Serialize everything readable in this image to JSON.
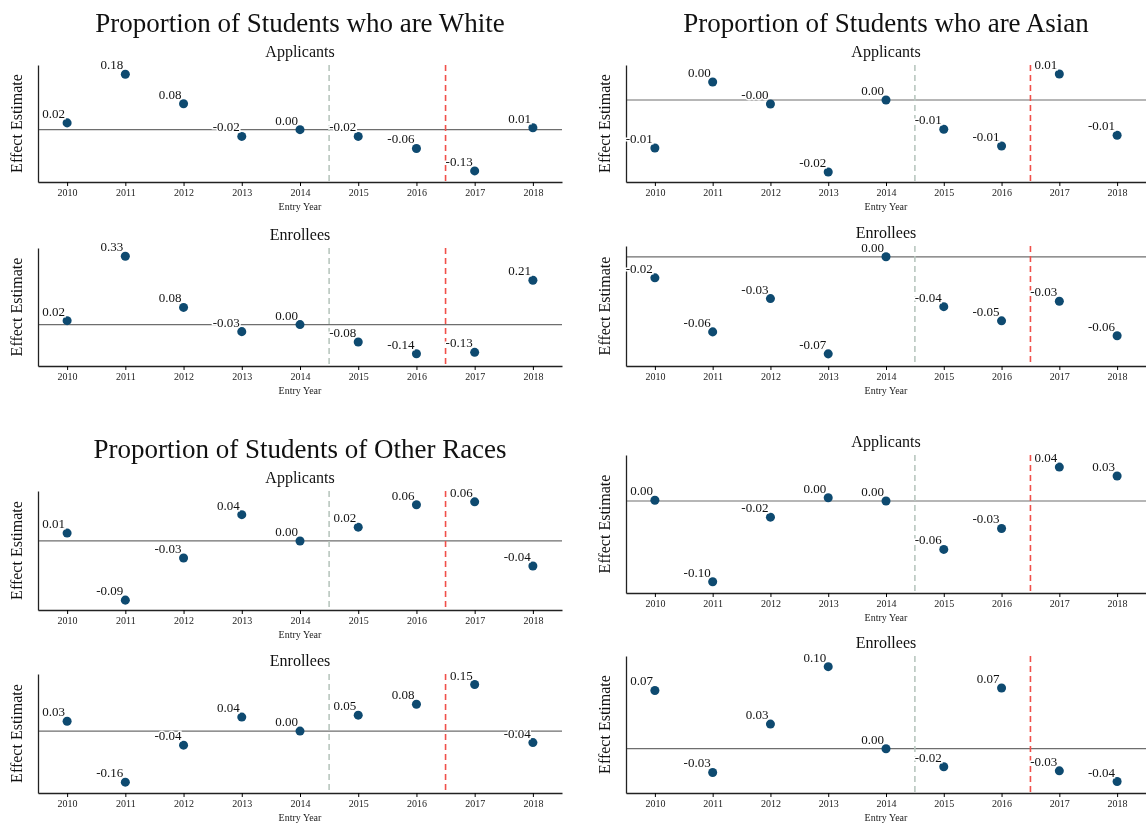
{
  "chart_data": [
    {
      "type": "scatter",
      "title": "Proportion of Students who are White",
      "subtitle": "Applicants",
      "xlabel": "Entry Year",
      "ylabel": "Effect Estimate",
      "x": [
        2010,
        2011,
        2012,
        2013,
        2014,
        2015,
        2016,
        2017,
        2018
      ],
      "xlim": [
        2009.5,
        2018.5
      ],
      "xticks": [
        2010,
        2011,
        2012,
        2013,
        2014,
        2015,
        2016,
        2017,
        2018
      ],
      "ylim": [
        -0.17,
        0.21
      ],
      "tick_labels": "x",
      "marker": "circle",
      "ref_lines": [
        {
          "axis": "y",
          "value": 0,
          "color": "#6e6e6e",
          "line_style": "solid"
        },
        {
          "axis": "x",
          "value": 2014.5,
          "color": "#b9c7bf",
          "line_style": "dashed"
        },
        {
          "axis": "x",
          "value": 2016.5,
          "color": "#f0504a",
          "line_style": "dashed"
        }
      ],
      "series": [
        {
          "color": "#0e4a70",
          "values": [
            0.022,
            0.18,
            0.084,
            -0.022,
            0,
            -0.022,
            -0.061,
            -0.134,
            0.006
          ],
          "value_labels": [
            "0.02",
            "0.18",
            "0.08",
            "-0.02",
            "0.00",
            "-0.02",
            "-0.06",
            "-0.13",
            "0.01"
          ]
        }
      ]
    },
    {
      "type": "scatter",
      "title": "Proportion of Students who are Asian",
      "subtitle": "Applicants",
      "xlabel": "Entry Year",
      "ylabel": "Effect Estimate",
      "x": [
        2010,
        2011,
        2012,
        2013,
        2014,
        2015,
        2016,
        2017,
        2018
      ],
      "xlim": [
        2009.5,
        2018.5
      ],
      "xticks": [
        2010,
        2011,
        2012,
        2013,
        2014,
        2015,
        2016,
        2017,
        2018
      ],
      "ylim": [
        -0.0205,
        0.00875
      ],
      "tick_labels": "x",
      "marker": "circle",
      "ref_lines": [
        {
          "axis": "y",
          "value": 0,
          "color": "#6e6e6e",
          "line_style": "solid"
        },
        {
          "axis": "x",
          "value": 2014.5,
          "color": "#b9c7bf",
          "line_style": "dashed"
        },
        {
          "axis": "x",
          "value": 2016.5,
          "color": "#f0504a",
          "line_style": "dashed"
        }
      ],
      "series": [
        {
          "color": "#0e4a70",
          "values": [
            -0.012,
            0.0045,
            -0.001,
            -0.018,
            0,
            -0.0073,
            -0.0115,
            0.0065,
            -0.0088
          ],
          "value_labels": [
            "-0.01",
            "0.00",
            "-0.00",
            "-0.02",
            "0.00",
            "-0.01",
            "-0.01",
            "0.01",
            "-0.01"
          ]
        }
      ]
    },
    {
      "type": "scatter",
      "subtitle": "Enrollees",
      "xlabel": "Entry Year",
      "ylabel": "Effect Estimate",
      "x": [
        2010,
        2011,
        2012,
        2013,
        2014,
        2015,
        2016,
        2017,
        2018
      ],
      "xlim": [
        2009.5,
        2018.5
      ],
      "xticks": [
        2010,
        2011,
        2012,
        2013,
        2014,
        2015,
        2016,
        2017,
        2018
      ],
      "ylim": [
        -0.2,
        0.37
      ],
      "tick_labels": "x",
      "marker": "circle",
      "ref_lines": [
        {
          "axis": "y",
          "value": 0,
          "color": "#6e6e6e",
          "line_style": "solid"
        },
        {
          "axis": "x",
          "value": 2014.5,
          "color": "#b9c7bf",
          "line_style": "dashed"
        },
        {
          "axis": "x",
          "value": 2016.5,
          "color": "#f0504a",
          "line_style": "dashed"
        }
      ],
      "series": [
        {
          "color": "#0e4a70",
          "values": [
            0.019,
            0.33,
            0.083,
            -0.034,
            0,
            -0.084,
            -0.141,
            -0.134,
            0.214
          ],
          "value_labels": [
            "0.02",
            "0.33",
            "0.08",
            "-0.03",
            "0.00",
            "-0.08",
            "-0.14",
            "-0.13",
            "0.21"
          ]
        }
      ]
    },
    {
      "type": "scatter",
      "subtitle": "Enrollees",
      "xlabel": "Entry Year",
      "ylabel": "Effect Estimate",
      "x": [
        2010,
        2011,
        2012,
        2013,
        2014,
        2015,
        2016,
        2017,
        2018
      ],
      "xlim": [
        2009.5,
        2018.5
      ],
      "xticks": [
        2010,
        2011,
        2012,
        2013,
        2014,
        2015,
        2016,
        2017,
        2018
      ],
      "ylim": [
        -0.081,
        0.008
      ],
      "tick_labels": "x",
      "marker": "circle",
      "ref_lines": [
        {
          "axis": "y",
          "value": 0,
          "color": "#6e6e6e",
          "line_style": "solid"
        },
        {
          "axis": "x",
          "value": 2014.5,
          "color": "#b9c7bf",
          "line_style": "dashed"
        },
        {
          "axis": "x",
          "value": 2016.5,
          "color": "#f0504a",
          "line_style": "dashed"
        }
      ],
      "series": [
        {
          "color": "#0e4a70",
          "values": [
            -0.0156,
            -0.0557,
            -0.031,
            -0.072,
            0,
            -0.037,
            -0.0475,
            -0.033,
            -0.0586
          ],
          "value_labels": [
            "-0.02",
            "-0.06",
            "-0.03",
            "-0.07",
            "0.00",
            "-0.04",
            "-0.05",
            "-0.03",
            "-0.06"
          ]
        }
      ]
    },
    {
      "type": "scatter",
      "title": "Proportion of Students of Other Races",
      "subtitle": "Applicants",
      "xlabel": "Entry Year",
      "ylabel": "Effect Estimate",
      "x": [
        2010,
        2011,
        2012,
        2013,
        2014,
        2015,
        2016,
        2017,
        2018
      ],
      "xlim": [
        2009.5,
        2018.5
      ],
      "xticks": [
        2010,
        2011,
        2012,
        2013,
        2014,
        2015,
        2016,
        2017,
        2018
      ],
      "ylim": [
        -0.105,
        0.076
      ],
      "tick_labels": "x",
      "marker": "circle",
      "ref_lines": [
        {
          "axis": "y",
          "value": 0,
          "color": "#6e6e6e",
          "line_style": "solid"
        },
        {
          "axis": "x",
          "value": 2014.5,
          "color": "#b9c7bf",
          "line_style": "dashed"
        },
        {
          "axis": "x",
          "value": 2016.5,
          "color": "#f0504a",
          "line_style": "dashed"
        }
      ],
      "series": [
        {
          "color": "#0e4a70",
          "values": [
            0.012,
            -0.09,
            -0.026,
            0.04,
            0,
            0.021,
            0.055,
            0.0595,
            -0.038
          ],
          "value_labels": [
            "0.01",
            "-0.09",
            "-0.03",
            "0.04",
            "0.00",
            "0.02",
            "0.06",
            "0.06",
            "-0.04"
          ]
        }
      ]
    },
    {
      "type": "scatter",
      "subtitle": "Applicants",
      "xlabel": "Entry Year",
      "ylabel": "Effect Estimate",
      "x": [
        2010,
        2011,
        2012,
        2013,
        2014,
        2015,
        2016,
        2017,
        2018
      ],
      "xlim": [
        2009.5,
        2018.5
      ],
      "xticks": [
        2010,
        2011,
        2012,
        2013,
        2014,
        2015,
        2016,
        2017,
        2018
      ],
      "ylim": [
        -0.114,
        0.057
      ],
      "tick_labels": "x",
      "marker": "circle",
      "ref_lines": [
        {
          "axis": "y",
          "value": 0,
          "color": "#6e6e6e",
          "line_style": "solid"
        },
        {
          "axis": "x",
          "value": 2014.5,
          "color": "#b9c7bf",
          "line_style": "dashed"
        },
        {
          "axis": "x",
          "value": 2016.5,
          "color": "#f0504a",
          "line_style": "dashed"
        }
      ],
      "series": [
        {
          "color": "#0e4a70",
          "values": [
            0.001,
            -0.1,
            -0.02,
            0.004,
            0,
            -0.06,
            -0.034,
            0.042,
            0.031
          ],
          "value_labels": [
            "0.00",
            "-0.10",
            "-0.02",
            "0.00",
            "0.00",
            "-0.06",
            "-0.03",
            "0.04",
            "0.03"
          ]
        }
      ]
    },
    {
      "type": "scatter",
      "subtitle": "Enrollees",
      "xlabel": "Entry Year",
      "ylabel": "Effect Estimate",
      "x": [
        2010,
        2011,
        2012,
        2013,
        2014,
        2015,
        2016,
        2017,
        2018
      ],
      "xlim": [
        2009.5,
        2018.5
      ],
      "xticks": [
        2010,
        2011,
        2012,
        2013,
        2014,
        2015,
        2016,
        2017,
        2018
      ],
      "ylim": [
        -0.194,
        0.179
      ],
      "tick_labels": "x",
      "marker": "circle",
      "ref_lines": [
        {
          "axis": "y",
          "value": 0,
          "color": "#6e6e6e",
          "line_style": "solid"
        },
        {
          "axis": "x",
          "value": 2014.5,
          "color": "#b9c7bf",
          "line_style": "dashed"
        },
        {
          "axis": "x",
          "value": 2016.5,
          "color": "#f0504a",
          "line_style": "dashed"
        }
      ],
      "series": [
        {
          "color": "#0e4a70",
          "values": [
            0.031,
            -0.16,
            -0.044,
            0.044,
            0,
            0.05,
            0.084,
            0.146,
            -0.036
          ],
          "value_labels": [
            "0.03",
            "-0.16",
            "-0.04",
            "0.04",
            "0.00",
            "0.05",
            "0.08",
            "0.15",
            "-0.04"
          ]
        }
      ]
    },
    {
      "type": "scatter",
      "subtitle": "Enrollees",
      "xlabel": "Entry Year",
      "ylabel": "Effect Estimate",
      "x": [
        2010,
        2011,
        2012,
        2013,
        2014,
        2015,
        2016,
        2017,
        2018
      ],
      "xlim": [
        2009.5,
        2018.5
      ],
      "xticks": [
        2010,
        2011,
        2012,
        2013,
        2014,
        2015,
        2016,
        2017,
        2018
      ],
      "ylim": [
        -0.054,
        0.113
      ],
      "tick_labels": "x",
      "marker": "circle",
      "ref_lines": [
        {
          "axis": "y",
          "value": 0,
          "color": "#6e6e6e",
          "line_style": "solid"
        },
        {
          "axis": "x",
          "value": 2014.5,
          "color": "#b9c7bf",
          "line_style": "dashed"
        },
        {
          "axis": "x",
          "value": 2016.5,
          "color": "#f0504a",
          "line_style": "dashed"
        }
      ],
      "series": [
        {
          "color": "#0e4a70",
          "values": [
            0.071,
            -0.029,
            0.03,
            0.1,
            0,
            -0.022,
            0.074,
            -0.027,
            -0.04
          ],
          "value_labels": [
            "0.07",
            "-0.03",
            "0.03",
            "0.10",
            "0.00",
            "-0.02",
            "0.07",
            "-0.03",
            "-0.04"
          ]
        }
      ]
    }
  ]
}
